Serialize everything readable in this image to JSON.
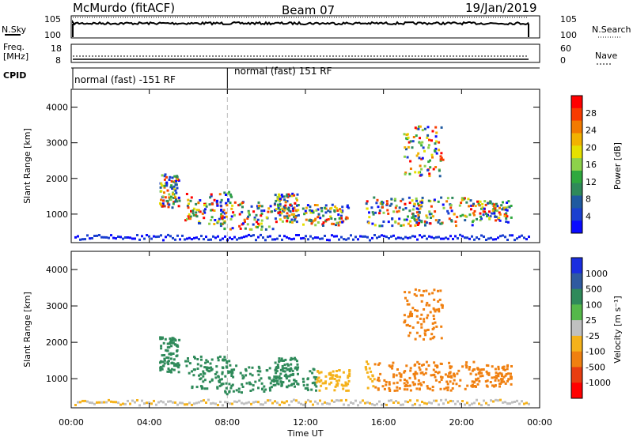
{
  "header": {
    "title": "McMurdo (fitACF)",
    "beam": "Beam 07",
    "date": "19/Jan/2019"
  },
  "side_labels": {
    "nsky": "N.Sky",
    "freq": "Freq.",
    "freq_unit": "[MHz]",
    "cpid": "CPID",
    "nsearch": "N.Search",
    "nave": "Nave"
  },
  "sky_panel": {
    "left_ticks": [
      "10^5",
      "10^0"
    ],
    "right_ticks": [
      "10^5",
      "10^0"
    ]
  },
  "freq_panel": {
    "left_ticks": [
      "18",
      "8"
    ],
    "right_ticks": [
      "60",
      "0"
    ]
  },
  "cpid_panel": {
    "modes": [
      {
        "start_hour": 0,
        "label": "normal (fast) -151 RF"
      },
      {
        "start_hour": 8,
        "label": "normal (fast) 151 RF"
      }
    ]
  },
  "power_panel": {
    "ylabel": "Slant Range [km]",
    "yticks": [
      1000,
      2000,
      3000,
      4000
    ],
    "colorbar_label": "Power [dB]",
    "colorbar_ticks": [
      "28",
      "24",
      "20",
      "16",
      "12",
      "8",
      "4"
    ],
    "colorbar_colors": [
      "#ff0000",
      "#f83b00",
      "#f27a00",
      "#f2b200",
      "#e5e000",
      "#8dd14a",
      "#2fa83e",
      "#2f8a5a",
      "#1f5aa0",
      "#1a3fd0",
      "#0a0aff"
    ]
  },
  "velocity_panel": {
    "ylabel": "Slant Range [km]",
    "yticks": [
      1000,
      2000,
      3000,
      4000
    ],
    "colorbar_label": "Velocity [m s⁻¹]",
    "colorbar_ticks": [
      "1000",
      "500",
      "100",
      "25",
      "-25",
      "-100",
      "-500",
      "-1000"
    ],
    "colorbar_colors": [
      "#1a2ee0",
      "#2f5aa0",
      "#2f8a5a",
      "#55b84a",
      "#c0c0c0",
      "#f5b21b",
      "#f08010",
      "#e83d10",
      "#ff0000"
    ]
  },
  "x_axis": {
    "ticks": [
      "00:00",
      "04:00",
      "08:00",
      "12:00",
      "16:00",
      "20:00",
      "00:00"
    ],
    "label": "Time UT"
  }
}
